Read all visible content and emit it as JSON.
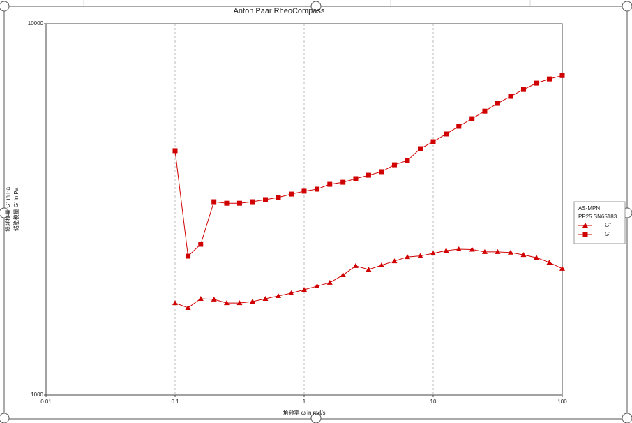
{
  "chart_data": {
    "type": "line",
    "title": "Anton Paar RheoCompass",
    "xlabel": "角频率 ω in rad/s",
    "ylabel": [
      "损耗模量 G'' in Pa",
      "储能模量 G' in Pa"
    ],
    "x": [
      0.1,
      0.126,
      0.158,
      0.2,
      0.251,
      0.316,
      0.398,
      0.501,
      0.631,
      0.794,
      1,
      1.26,
      1.58,
      2,
      2.51,
      3.16,
      3.98,
      5.01,
      6.31,
      7.94,
      10,
      12.6,
      15.8,
      20,
      25.1,
      31.6,
      39.8,
      50.1,
      63.1,
      79.4,
      100
    ],
    "series": [
      {
        "name": "G''",
        "color": "#d00000",
        "marker": "triangle",
        "values": [
          1770,
          1718,
          1817,
          1810,
          1770,
          1770,
          1786,
          1817,
          1849,
          1881,
          1922,
          1965,
          2008,
          2105,
          2228,
          2178,
          2237,
          2295,
          2355,
          2370,
          2408,
          2449,
          2471,
          2465,
          2430,
          2430,
          2420,
          2385,
          2345,
          2275,
          2190
        ]
      },
      {
        "name": "G'",
        "color": "#d00000",
        "marker": "square",
        "values": [
          4550,
          2366,
          2547,
          3316,
          3285,
          3285,
          3316,
          3360,
          3405,
          3477,
          3540,
          3585,
          3694,
          3742,
          3826,
          3908,
          3996,
          4170,
          4282,
          4608,
          4812,
          5047,
          5293,
          5549,
          5817,
          6104,
          6374,
          6653,
          6919,
          7100,
          7250
        ]
      }
    ],
    "legend_title": [
      "AS-MPN",
      "PP25 SN65183"
    ],
    "legend": "right",
    "xlog": true,
    "ylog": true,
    "xlim": [
      0.01,
      100
    ],
    "ylim": [
      1000,
      10000
    ],
    "xticks": [
      0.01,
      0.1,
      1,
      10,
      100
    ],
    "yticks": [
      1000,
      10000
    ],
    "grid": true
  }
}
